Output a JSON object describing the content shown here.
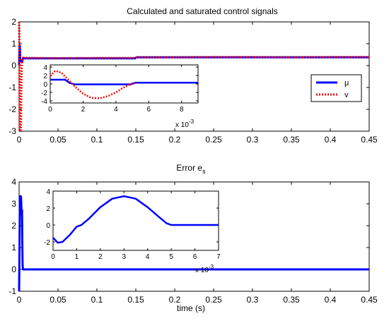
{
  "chart_data": [
    {
      "type": "line",
      "title": "Calculated and saturated control signals",
      "xlabel": "",
      "ylabel": "",
      "xlim": [
        0,
        0.45
      ],
      "ylim": [
        -3,
        2
      ],
      "xticks": [
        0,
        0.05,
        0.1,
        0.15,
        0.2,
        0.25,
        0.3,
        0.35,
        0.4,
        0.45
      ],
      "xtick_labels": [
        "0",
        "0.05",
        "0.1",
        "0.15",
        "0.2",
        "0.25",
        "0.3",
        "0.35",
        "0.4",
        "0.45"
      ],
      "yticks": [
        -3,
        -2,
        -1,
        0,
        1,
        2
      ],
      "ytick_labels": [
        "-3",
        "-2",
        "-1",
        "0",
        "1",
        "2"
      ],
      "grid": false,
      "legend_position": "middle-right",
      "series": [
        {
          "name": "μ",
          "color": "#0000ff",
          "style": "solid",
          "x": [
            0,
            0.0005,
            0.001,
            0.0015,
            0.002,
            0.003,
            0.004,
            0.005,
            0.02,
            0.05,
            0.1,
            0.149,
            0.151,
            0.2,
            0.25,
            0.3,
            0.35,
            0.4,
            0.45
          ],
          "y": [
            0,
            0.9,
            0.9,
            0.2,
            0.2,
            0.2,
            0.2,
            0.33,
            0.33,
            0.33,
            0.33,
            0.33,
            0.38,
            0.38,
            0.38,
            0.38,
            0.38,
            0.38,
            0.38
          ]
        },
        {
          "name": "v",
          "color": "#ff0000",
          "style": "dotted",
          "x": [
            0,
            0.0003,
            0.0008,
            0.0012,
            0.0016,
            0.002,
            0.0024,
            0.0028,
            0.0032,
            0.004,
            0.005,
            0.02,
            0.05,
            0.1,
            0.149,
            0.151,
            0.2,
            0.25,
            0.3,
            0.35,
            0.4,
            0.45
          ],
          "y": [
            2,
            1.6,
            -2,
            -3,
            -3,
            -3,
            -2.6,
            -1.4,
            -0.2,
            0.2,
            0.36,
            0.35,
            0.34,
            0.35,
            0.35,
            0.38,
            0.38,
            0.39,
            0.39,
            0.38,
            0.39,
            0.39
          ]
        }
      ],
      "inset": {
        "xlim": [
          0,
          0.009
        ],
        "ylim": [
          -4.5,
          4.5
        ],
        "xticks": [
          0,
          0.002,
          0.004,
          0.006,
          0.008
        ],
        "xtick_labels": [
          "0",
          "2",
          "4",
          "6",
          "8"
        ],
        "yticks": [
          -4,
          -2,
          0,
          2,
          4
        ],
        "ytick_labels": [
          "-4",
          "-2",
          "0",
          "2",
          "4"
        ],
        "multiplier_base": "x 10",
        "multiplier_exp": "-3",
        "series": [
          {
            "name": "μ",
            "color": "#0000ff",
            "style": "solid",
            "x": [
              0,
              0.0009,
              0.0012,
              0.0015,
              0.003,
              0.0049,
              0.0052,
              0.0055,
              0.009
            ],
            "y": [
              1,
              1,
              0.2,
              -0.1,
              -0.1,
              -0.1,
              0.3,
              0.3,
              0.3
            ]
          },
          {
            "name": "v",
            "color": "#ff0000",
            "style": "dotted",
            "x": [
              0,
              0.0003,
              0.0007,
              0.001,
              0.0015,
              0.002,
              0.0025,
              0.003,
              0.0035,
              0.004,
              0.0045,
              0.005,
              0.0052
            ],
            "y": [
              1.9,
              3.1,
              2.6,
              1.4,
              -0.6,
              -2.3,
              -3.3,
              -3.4,
              -2.9,
              -2.0,
              -0.8,
              0.1,
              0.2
            ]
          }
        ]
      }
    },
    {
      "type": "line",
      "title": "Error e",
      "title_subscript": "s",
      "xlabel": "time (s)",
      "ylabel": "",
      "xlim": [
        0,
        0.45
      ],
      "ylim": [
        -1,
        4
      ],
      "xticks": [
        0,
        0.05,
        0.1,
        0.15,
        0.2,
        0.25,
        0.3,
        0.35,
        0.4,
        0.45
      ],
      "xtick_labels": [
        "0",
        "0.05",
        "0.1",
        "0.15",
        "0.2",
        "0.25",
        "0.3",
        "0.35",
        "0.4",
        "0.45"
      ],
      "yticks": [
        -1,
        0,
        1,
        2,
        3,
        4
      ],
      "ytick_labels": [
        "-1",
        "0",
        "1",
        "2",
        "3",
        "4"
      ],
      "grid": false,
      "series": [
        {
          "name": "",
          "color": "#0000ff",
          "style": "solid",
          "x": [
            0,
            0.0004,
            0.0008,
            0.0012,
            0.0017,
            0.002,
            0.0025,
            0.003,
            0.0035,
            0.0038,
            0.0042,
            0.0045,
            0.005,
            0.45
          ],
          "y": [
            -1,
            0.5,
            2.2,
            3.3,
            3.35,
            3.35,
            3.3,
            2.8,
            2.5,
            2.7,
            1.0,
            0.2,
            0,
            0
          ]
        }
      ],
      "inset": {
        "xlim": [
          0,
          0.007
        ],
        "ylim": [
          -3,
          4
        ],
        "xticks": [
          0,
          0.001,
          0.002,
          0.003,
          0.004,
          0.005,
          0.006,
          0.007
        ],
        "xtick_labels": [
          "0",
          "1",
          "2",
          "3",
          "4",
          "5",
          "6",
          "7"
        ],
        "yticks": [
          -2,
          0,
          2,
          4
        ],
        "ytick_labels": [
          "-2",
          "0",
          "2",
          "4"
        ],
        "multiplier_base": "x 10",
        "multiplier_exp": "-3",
        "series": [
          {
            "name": "",
            "color": "#0000ff",
            "style": "solid",
            "x": [
              0,
              0.0002,
              0.0004,
              0.0007,
              0.001,
              0.0012,
              0.0015,
              0.002,
              0.0025,
              0.003,
              0.0035,
              0.004,
              0.0045,
              0.0048,
              0.005,
              0.007
            ],
            "y": [
              -1.5,
              -2.1,
              -2.0,
              -1.2,
              -0.2,
              0.0,
              0.7,
              2.1,
              3.1,
              3.4,
              3.1,
              2.1,
              0.9,
              0.2,
              0,
              0
            ]
          }
        ]
      }
    }
  ]
}
